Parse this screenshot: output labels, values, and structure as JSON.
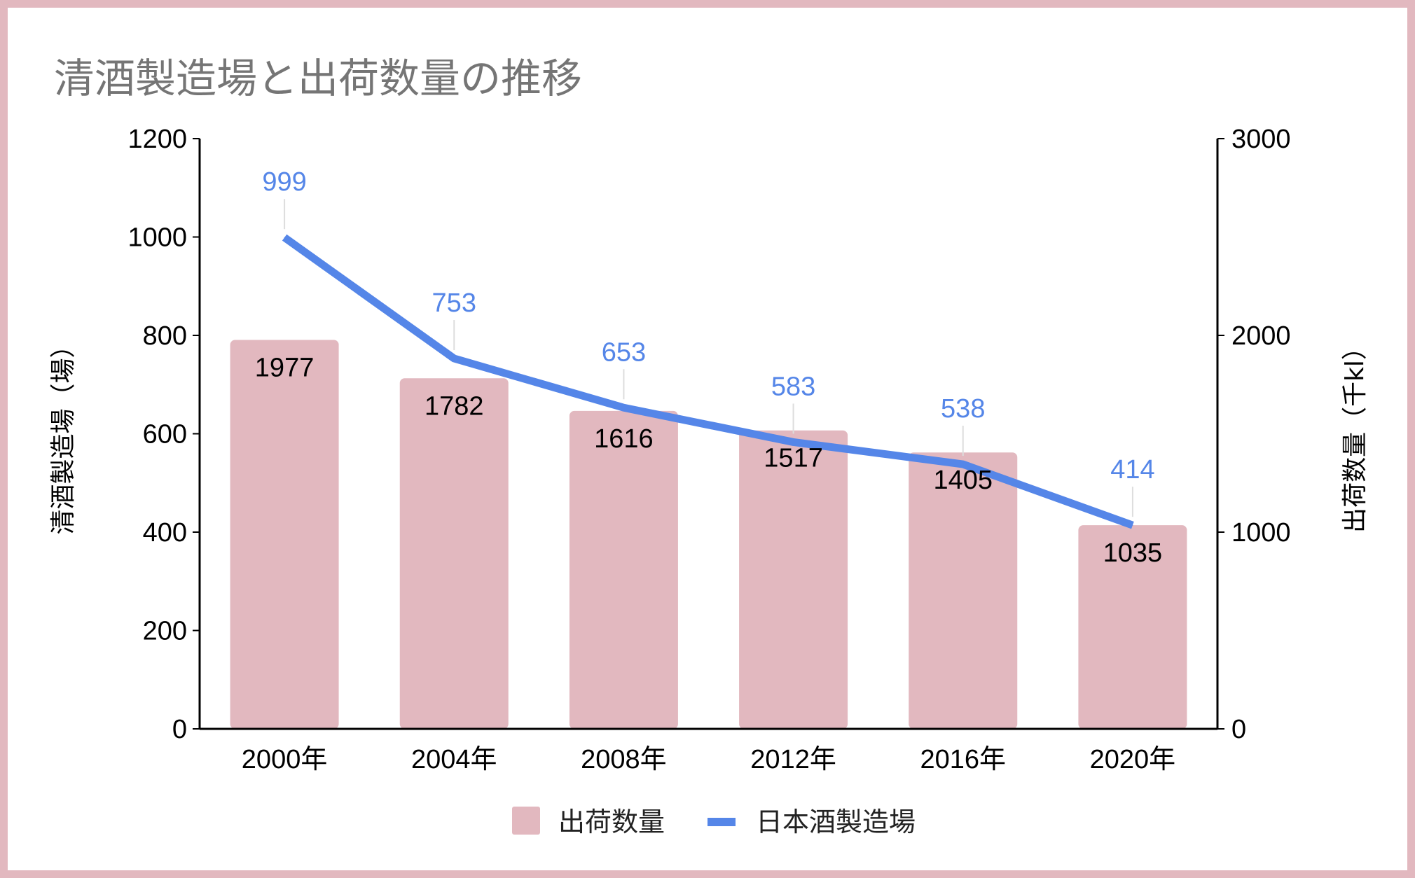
{
  "colors": {
    "border": "#e2b8bf",
    "bar": "#e2b8bf",
    "line": "#5586e8",
    "title": "#757575"
  },
  "chart_data": {
    "type": "bar",
    "title": "清酒製造場と出荷数量の推移",
    "categories": [
      "2000年",
      "2004年",
      "2008年",
      "2012年",
      "2016年",
      "2020年"
    ],
    "series": [
      {
        "name": "出荷数量",
        "type": "bar",
        "axis": "right",
        "values": [
          1977,
          1782,
          1616,
          1517,
          1405,
          1035
        ]
      },
      {
        "name": "日本酒製造場",
        "type": "line",
        "axis": "left",
        "values": [
          999,
          753,
          653,
          583,
          538,
          414
        ]
      }
    ],
    "y_left": {
      "label": "清酒製造場（場）",
      "range": [
        0,
        1200
      ],
      "ticks": [
        0,
        200,
        400,
        600,
        800,
        1000,
        1200
      ]
    },
    "y_right": {
      "label": "出荷数量（千kl）",
      "range": [
        0,
        3000
      ],
      "ticks": [
        0,
        1000,
        2000,
        3000
      ]
    },
    "legend": {
      "position": "bottom",
      "items": [
        "出荷数量",
        "日本酒製造場"
      ]
    },
    "grid": false,
    "data_labels": true
  }
}
